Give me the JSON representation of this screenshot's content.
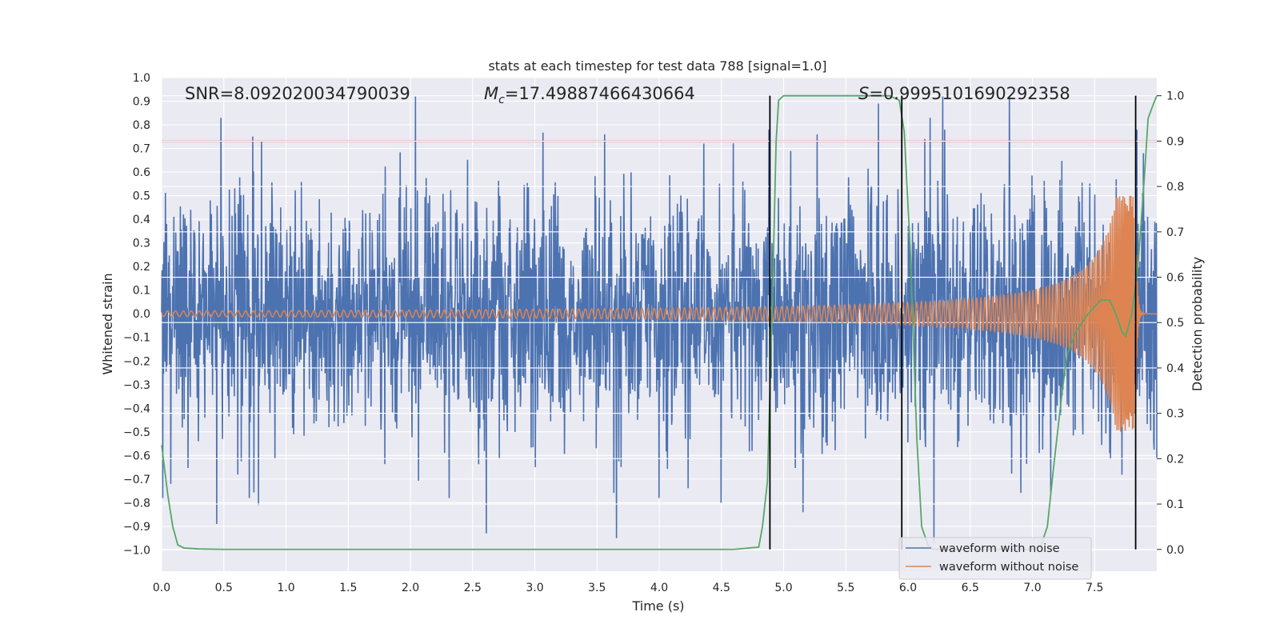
{
  "chart_data": {
    "type": "line",
    "title": "stats at each timestep for test data 788 [signal=1.0]",
    "xlabel": "Time (s)",
    "ylabel_left": "Whitened strain",
    "ylabel_right": "Detection probability",
    "xlim": [
      0.0,
      8.0
    ],
    "ylim_left": [
      -1.09,
      1.0
    ],
    "ylim_right": [
      -0.048,
      1.04
    ],
    "x_ticks": [
      0.0,
      0.5,
      1.0,
      1.5,
      2.0,
      2.5,
      3.0,
      3.5,
      4.0,
      4.5,
      5.0,
      5.5,
      6.0,
      6.5,
      7.0,
      7.5
    ],
    "x_tick_labels": [
      "0.0",
      "0.5",
      "1.0",
      "1.5",
      "2.0",
      "2.5",
      "3.0",
      "3.5",
      "4.0",
      "4.5",
      "5.0",
      "5.5",
      "6.0",
      "6.5",
      "7.0",
      "7.5"
    ],
    "y_left_ticks": [
      1.0,
      0.9,
      0.8,
      0.7,
      0.6,
      0.5,
      0.4,
      0.3,
      0.2,
      0.1,
      0.0,
      -0.1,
      -0.2,
      -0.3,
      -0.4,
      -0.5,
      -0.6,
      -0.7,
      -0.8,
      -0.9,
      -1.0
    ],
    "y_left_tick_labels": [
      "1.0",
      "0.9",
      "0.8",
      "0.7",
      "0.6",
      "0.5",
      "0.4",
      "0.3",
      "0.2",
      "0.1",
      "0.0",
      "−0.1",
      "−0.2",
      "−0.3",
      "−0.4",
      "−0.5",
      "−0.6",
      "−0.7",
      "−0.8",
      "−0.9",
      "−1.0"
    ],
    "y_right_ticks": [
      1.0,
      0.9,
      0.8,
      0.7,
      0.6,
      0.5,
      0.4,
      0.3,
      0.2,
      0.1,
      0.0
    ],
    "y_right_tick_labels": [
      "1.0",
      "0.9",
      "0.8",
      "0.7",
      "0.6",
      "0.5",
      "0.4",
      "0.3",
      "0.2",
      "0.1",
      "0.0"
    ],
    "annotations": {
      "snr": "SNR=8.092020034790039",
      "mc_symbol": "M",
      "mc_subscript": "c",
      "mc_value": "=17.49887466430664",
      "s_symbol": "S",
      "s_value": "=0.9995101690292358"
    },
    "threshold_line": {
      "axis": "right",
      "value": 0.9,
      "color": "#c44e52"
    },
    "vertical_lines": [
      4.89,
      5.95,
      7.83
    ],
    "series": [
      {
        "name": "waveform with noise",
        "axis": "left",
        "color": "#4c72b0",
        "kind": "noise",
        "t_end": 8.0,
        "typical_amplitude": 0.35,
        "peak_values": [
          0.74,
          0.83,
          0.92,
          0.75,
          0.83,
          0.76,
          0.89,
          0.68,
          0.92,
          0.76,
          0.73,
          0.92,
          -0.97,
          -0.95,
          -0.93,
          -0.89,
          -0.84,
          -0.8,
          -0.81
        ]
      },
      {
        "name": "waveform without noise",
        "axis": "left",
        "color": "#dd8452",
        "kind": "chirp",
        "t_merger": 7.83,
        "t_end": 8.0,
        "start_amplitude": 0.012,
        "peak_amplitude": 0.5
      },
      {
        "name": "detection probability",
        "axis": "right",
        "color": "#55a868",
        "points": [
          [
            0.0,
            0.23
          ],
          [
            0.05,
            0.12
          ],
          [
            0.09,
            0.05
          ],
          [
            0.13,
            0.01
          ],
          [
            0.18,
            0.003
          ],
          [
            0.3,
            0.001
          ],
          [
            0.5,
            0.0
          ],
          [
            1.0,
            0.0
          ],
          [
            2.0,
            0.0
          ],
          [
            3.0,
            0.0
          ],
          [
            4.0,
            0.0
          ],
          [
            4.6,
            0.0
          ],
          [
            4.8,
            0.005
          ],
          [
            4.83,
            0.05
          ],
          [
            4.87,
            0.15
          ],
          [
            4.91,
            0.55
          ],
          [
            4.94,
            0.9
          ],
          [
            4.96,
            0.99
          ],
          [
            5.0,
            1.0
          ],
          [
            5.5,
            1.0
          ],
          [
            5.85,
            1.0
          ],
          [
            5.93,
            0.99
          ],
          [
            5.97,
            0.92
          ],
          [
            6.02,
            0.65
          ],
          [
            6.07,
            0.25
          ],
          [
            6.11,
            0.05
          ],
          [
            6.16,
            0.01
          ],
          [
            6.2,
            0.0
          ],
          [
            6.5,
            0.0
          ],
          [
            7.0,
            0.0
          ],
          [
            7.07,
            0.01
          ],
          [
            7.12,
            0.05
          ],
          [
            7.17,
            0.18
          ],
          [
            7.24,
            0.35
          ],
          [
            7.28,
            0.43
          ],
          [
            7.35,
            0.48
          ],
          [
            7.45,
            0.52
          ],
          [
            7.55,
            0.55
          ],
          [
            7.62,
            0.55
          ],
          [
            7.67,
            0.52
          ],
          [
            7.72,
            0.48
          ],
          [
            7.75,
            0.47
          ],
          [
            7.8,
            0.52
          ],
          [
            7.85,
            0.63
          ],
          [
            7.9,
            0.82
          ],
          [
            7.93,
            0.95
          ],
          [
            7.97,
            0.98
          ],
          [
            8.0,
            1.0
          ]
        ]
      }
    ],
    "legend": {
      "position": "lower-right",
      "entries": [
        "waveform with noise",
        "waveform without noise"
      ]
    }
  }
}
